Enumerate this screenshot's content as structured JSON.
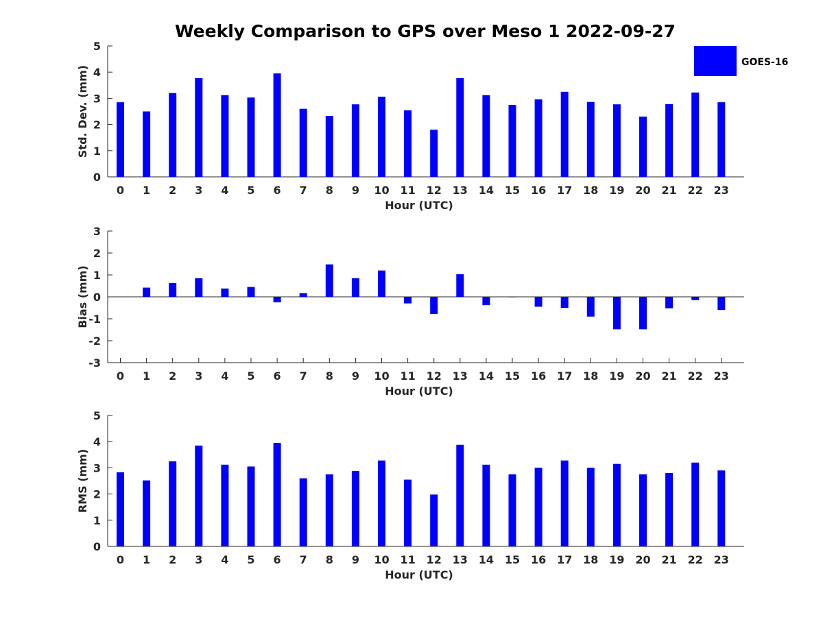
{
  "title": "Weekly Comparison to GPS over Meso 1 2022-09-27",
  "colors": {
    "bar": "#0000ff",
    "axis": "#262626"
  },
  "legend": {
    "label": "GOES-16",
    "placement": "top-right"
  },
  "chart_data": [
    {
      "type": "bar",
      "title": "Weekly Comparison to GPS over Meso 1 2022-09-27",
      "xlabel": "Hour (UTC)",
      "ylabel": "Std. Dev. (mm)",
      "series_name": "GOES-16",
      "categories": [
        "0",
        "1",
        "2",
        "3",
        "4",
        "5",
        "6",
        "7",
        "8",
        "9",
        "10",
        "11",
        "12",
        "13",
        "14",
        "15",
        "16",
        "17",
        "18",
        "19",
        "20",
        "21",
        "22",
        "23"
      ],
      "values": [
        2.85,
        2.5,
        3.2,
        3.77,
        3.12,
        3.03,
        3.95,
        2.6,
        2.33,
        2.77,
        3.06,
        2.54,
        1.8,
        3.77,
        3.12,
        2.75,
        2.96,
        3.25,
        2.86,
        2.77,
        2.3,
        2.78,
        3.22,
        2.85
      ],
      "ylim": [
        0,
        5
      ],
      "yticks": [
        "0",
        "1",
        "2",
        "3",
        "4",
        "5"
      ]
    },
    {
      "type": "bar",
      "xlabel": "Hour (UTC)",
      "ylabel": "Bias (mm)",
      "series_name": "GOES-16",
      "categories": [
        "0",
        "1",
        "2",
        "3",
        "4",
        "5",
        "6",
        "7",
        "8",
        "9",
        "10",
        "11",
        "12",
        "13",
        "14",
        "15",
        "16",
        "17",
        "18",
        "19",
        "20",
        "21",
        "22",
        "23"
      ],
      "values": [
        0.0,
        0.42,
        0.63,
        0.85,
        0.38,
        0.45,
        -0.25,
        0.17,
        1.48,
        0.85,
        1.2,
        -0.3,
        -0.78,
        1.03,
        -0.38,
        -0.02,
        -0.45,
        -0.5,
        -0.9,
        -1.48,
        -1.48,
        -0.52,
        -0.15,
        -0.6
      ],
      "ylim": [
        -3,
        3
      ],
      "yticks": [
        "-3",
        "-2",
        "-1",
        "0",
        "1",
        "2",
        "3"
      ]
    },
    {
      "type": "bar",
      "xlabel": "Hour (UTC)",
      "ylabel": "RMS (mm)",
      "series_name": "GOES-16",
      "categories": [
        "0",
        "1",
        "2",
        "3",
        "4",
        "5",
        "6",
        "7",
        "8",
        "9",
        "10",
        "11",
        "12",
        "13",
        "14",
        "15",
        "16",
        "17",
        "18",
        "19",
        "20",
        "21",
        "22",
        "23"
      ],
      "values": [
        2.83,
        2.52,
        3.25,
        3.85,
        3.12,
        3.05,
        3.95,
        2.6,
        2.75,
        2.88,
        3.28,
        2.55,
        1.98,
        3.88,
        3.12,
        2.75,
        3.0,
        3.28,
        3.0,
        3.15,
        2.75,
        2.8,
        3.2,
        2.9
      ],
      "ylim": [
        0,
        5
      ],
      "yticks": [
        "0",
        "1",
        "2",
        "3",
        "4",
        "5"
      ]
    }
  ]
}
